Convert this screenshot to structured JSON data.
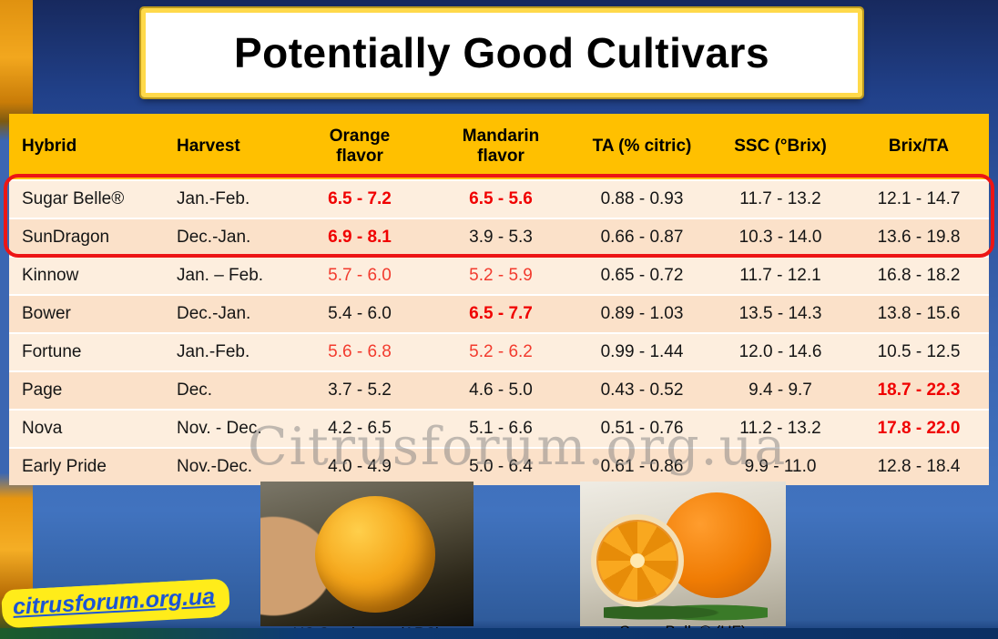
{
  "slide": {
    "title": "Potentially Good Cultivars"
  },
  "table": {
    "columns": [
      "Hybrid",
      "Harvest",
      "Orange flavor",
      "Mandarin flavor",
      "TA (% citric)",
      "SSC (°Brix)",
      "Brix/TA"
    ],
    "rows": [
      {
        "hybrid": "Sugar Belle®",
        "harvest": "Jan.-Feb.",
        "orange_flavor": "6.5 - 7.2",
        "mandarin_flavor": "6.5 - 5.6",
        "ta_citric": "0.88 - 0.93",
        "ssc_brix": "11.7 - 13.2",
        "brix_ta": "12.1 - 14.7"
      },
      {
        "hybrid": "SunDragon",
        "harvest": "Dec.-Jan.",
        "orange_flavor": "6.9 - 8.1",
        "mandarin_flavor": "3.9 - 5.3",
        "ta_citric": "0.66 - 0.87",
        "ssc_brix": "10.3 - 14.0",
        "brix_ta": "13.6 - 19.8"
      },
      {
        "hybrid": "Kinnow",
        "harvest": "Jan. – Feb.",
        "orange_flavor": "5.7 - 6.0",
        "mandarin_flavor": "5.2 - 5.9",
        "ta_citric": "0.65 - 0.72",
        "ssc_brix": "11.7 - 12.1",
        "brix_ta": "16.8 - 18.2"
      },
      {
        "hybrid": "Bower",
        "harvest": "Dec.-Jan.",
        "orange_flavor": "5.4 - 6.0",
        "mandarin_flavor": "6.5 - 7.7",
        "ta_citric": "0.89 - 1.03",
        "ssc_brix": "13.5 - 14.3",
        "brix_ta": "13.8 - 15.6"
      },
      {
        "hybrid": "Fortune",
        "harvest": "Jan.-Feb.",
        "orange_flavor": "5.6 - 6.8",
        "mandarin_flavor": "5.2 - 6.2",
        "ta_citric": "0.99 - 1.44",
        "ssc_brix": "12.0 - 14.6",
        "brix_ta": "10.5 - 12.5"
      },
      {
        "hybrid": "Page",
        "harvest": "Dec.",
        "orange_flavor": "3.7 - 5.2",
        "mandarin_flavor": "4.6 - 5.0",
        "ta_citric": "0.43 - 0.52",
        "ssc_brix": "9.4 - 9.7",
        "brix_ta": "18.7 - 22.3"
      },
      {
        "hybrid": "Nova",
        "harvest": "Nov. - Dec.",
        "orange_flavor": "4.2 - 6.5",
        "mandarin_flavor": "5.1 - 6.6",
        "ta_citric": "0.51 - 0.76",
        "ssc_brix": "11.2 - 13.2",
        "brix_ta": "17.8 - 22.0"
      },
      {
        "hybrid": "Early Pride",
        "harvest": "Nov.-Dec.",
        "orange_flavor": "4.0 - 4.9",
        "mandarin_flavor": "5.0 - 6.4",
        "ta_citric": "0.61 - 0.86",
        "ssc_brix": "9.9 - 11.0",
        "brix_ta": "12.8 - 18.4"
      }
    ]
  },
  "photos": [
    {
      "caption": "US Sundragon (ARS)"
    },
    {
      "caption": "Sugar Belle® (UF)"
    }
  ],
  "watermarks": {
    "table_overlay": "Citrusforum.org.ua",
    "corner": "citrusforum.org.ua"
  },
  "colors": {
    "header_bg": "#FFC000",
    "highlight_red_bold": "#F00000",
    "highlight_red": "#F23B2E",
    "row_light": "#FDEEDE",
    "row_dark": "#FBE1C9",
    "title_border_yellow": "#FFD94A",
    "selection_box_red": "#ED1515"
  }
}
